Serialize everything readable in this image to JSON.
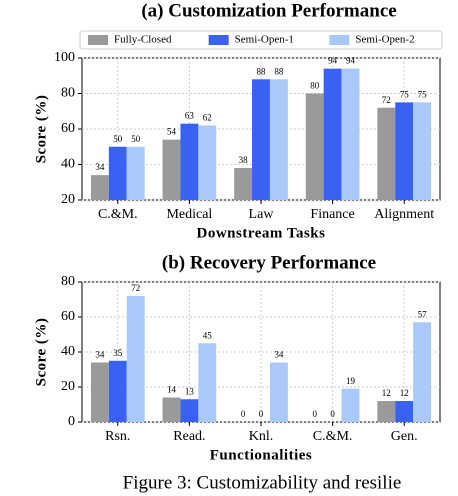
{
  "chart_data": [
    {
      "type": "bar",
      "title": "(a)  Customization Performance",
      "xlabel": "Downstream Tasks",
      "ylabel": "Score (%)",
      "categories": [
        "C.&M.",
        "Medical",
        "Law",
        "Finance",
        "Alignment"
      ],
      "series": [
        {
          "name": "Fully-Closed",
          "color": "#9a9a9a",
          "values": [
            34,
            54,
            38,
            80,
            72
          ]
        },
        {
          "name": "Semi-Open-1",
          "color": "#3a62f2",
          "values": [
            50,
            63,
            88,
            94,
            75
          ]
        },
        {
          "name": "Semi-Open-2",
          "color": "#a9c9f8",
          "values": [
            50,
            62,
            88,
            94,
            75
          ]
        }
      ],
      "ylim": [
        20,
        100
      ],
      "yticks": [
        20,
        40,
        60,
        80,
        100
      ],
      "grid": true,
      "legend": "top"
    },
    {
      "type": "bar",
      "title": "(b)  Recovery Performance",
      "xlabel": "Functionalities",
      "ylabel": "Score (%)",
      "categories": [
        "Rsn.",
        "Read.",
        "Knl.",
        "C.&M.",
        "Gen."
      ],
      "series": [
        {
          "color": "#9a9a9a",
          "values": [
            34,
            14,
            0,
            0,
            12
          ]
        },
        {
          "color": "#3a62f2",
          "values": [
            35,
            13,
            0,
            0,
            12
          ]
        },
        {
          "color": "#a9c9f8",
          "values": [
            72,
            45,
            34,
            19,
            57
          ]
        }
      ],
      "ylim": [
        0,
        80
      ],
      "yticks": [
        0,
        20,
        40,
        60,
        80
      ],
      "grid": true
    }
  ],
  "caption": "Figure 3:  Customizability and resilie"
}
